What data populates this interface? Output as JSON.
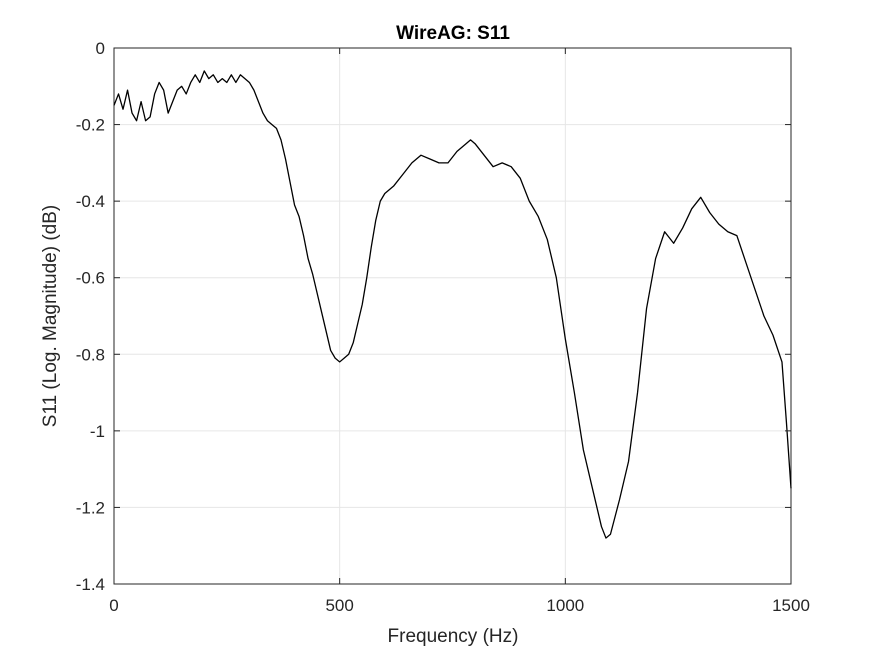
{
  "chart_data": {
    "type": "line",
    "title": "WireAG: S11",
    "xlabel": "Frequency (Hz)",
    "ylabel": "S11 (Log. Magnitude) (dB)",
    "xlim": [
      0,
      1500
    ],
    "ylim": [
      -1.4,
      0
    ],
    "xticks": [
      0,
      500,
      1000,
      1500
    ],
    "xtick_labels": [
      "0",
      "500",
      "1000",
      "1500"
    ],
    "yticks": [
      0,
      -0.2,
      -0.4,
      -0.6,
      -0.8,
      -1,
      -1.2,
      -1.4
    ],
    "ytick_labels": [
      "0",
      "-0.2",
      "-0.4",
      "-0.6",
      "-0.8",
      "-1",
      "-1.2",
      "-1.4"
    ],
    "grid": true,
    "legend": "none",
    "colors": {
      "line": "#000000",
      "grid": "#e6e6e6",
      "axis": "#262626"
    },
    "series": [
      {
        "x": [
          0,
          10,
          20,
          30,
          40,
          50,
          60,
          70,
          80,
          90,
          100,
          110,
          120,
          130,
          140,
          150,
          160,
          170,
          180,
          190,
          200,
          210,
          220,
          230,
          240,
          250,
          260,
          270,
          280,
          290,
          300,
          310,
          320,
          330,
          340,
          350,
          360,
          370,
          380,
          390,
          400,
          410,
          420,
          430,
          440,
          450,
          460,
          470,
          480,
          490,
          500,
          510,
          520,
          530,
          540,
          550,
          560,
          570,
          580,
          590,
          600,
          620,
          640,
          660,
          680,
          700,
          720,
          740,
          760,
          780,
          790,
          800,
          820,
          840,
          860,
          880,
          900,
          920,
          940,
          960,
          980,
          1000,
          1020,
          1040,
          1060,
          1080,
          1090,
          1100,
          1120,
          1140,
          1160,
          1180,
          1200,
          1220,
          1240,
          1260,
          1280,
          1300,
          1320,
          1340,
          1360,
          1380,
          1400,
          1420,
          1440,
          1460,
          1480,
          1490,
          1500
        ],
        "y": [
          -0.15,
          -0.12,
          -0.16,
          -0.11,
          -0.17,
          -0.19,
          -0.14,
          -0.19,
          -0.18,
          -0.12,
          -0.09,
          -0.11,
          -0.17,
          -0.14,
          -0.11,
          -0.1,
          -0.12,
          -0.09,
          -0.07,
          -0.09,
          -0.06,
          -0.08,
          -0.07,
          -0.09,
          -0.08,
          -0.09,
          -0.07,
          -0.09,
          -0.07,
          -0.08,
          -0.09,
          -0.11,
          -0.14,
          -0.17,
          -0.19,
          -0.2,
          -0.21,
          -0.24,
          -0.29,
          -0.35,
          -0.41,
          -0.44,
          -0.49,
          -0.55,
          -0.59,
          -0.64,
          -0.69,
          -0.74,
          -0.79,
          -0.81,
          -0.82,
          -0.81,
          -0.8,
          -0.77,
          -0.72,
          -0.67,
          -0.6,
          -0.52,
          -0.45,
          -0.4,
          -0.38,
          -0.36,
          -0.33,
          -0.3,
          -0.28,
          -0.29,
          -0.3,
          -0.3,
          -0.27,
          -0.25,
          -0.24,
          -0.25,
          -0.28,
          -0.31,
          -0.3,
          -0.31,
          -0.34,
          -0.4,
          -0.44,
          -0.5,
          -0.6,
          -0.76,
          -0.9,
          -1.05,
          -1.15,
          -1.25,
          -1.28,
          -1.27,
          -1.18,
          -1.08,
          -0.9,
          -0.68,
          -0.55,
          -0.48,
          -0.51,
          -0.47,
          -0.42,
          -0.39,
          -0.43,
          -0.46,
          -0.48,
          -0.49,
          -0.56,
          -0.63,
          -0.7,
          -0.75,
          -0.82,
          -0.98,
          -1.15
        ]
      }
    ]
  }
}
